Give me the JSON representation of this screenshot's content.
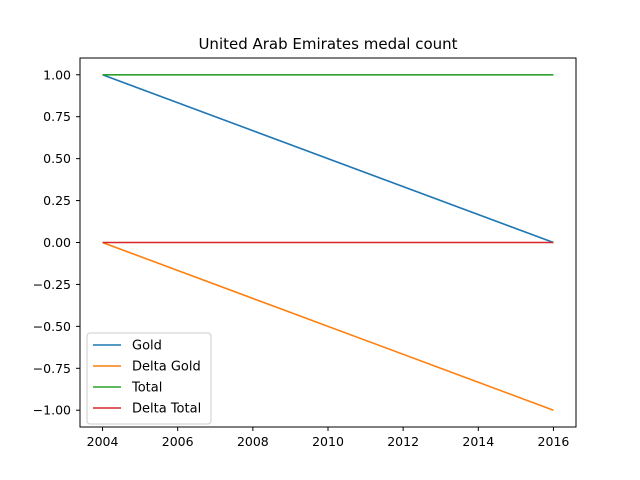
{
  "chart_data": {
    "type": "line",
    "title": "United Arab Emirates medal count",
    "xlabel": "",
    "ylabel": "",
    "x": [
      2004,
      2016
    ],
    "xlim": [
      2003.4,
      2016.6
    ],
    "ylim": [
      -1.1,
      1.1
    ],
    "xticks": [
      2004,
      2006,
      2008,
      2010,
      2012,
      2014,
      2016
    ],
    "yticks": [
      1.0,
      0.75,
      0.5,
      0.25,
      0.0,
      -0.25,
      -0.5,
      -0.75,
      -1.0
    ],
    "xtick_labels": [
      "2004",
      "2006",
      "2008",
      "2010",
      "2012",
      "2014",
      "2016"
    ],
    "ytick_labels": [
      "1.00",
      "0.75",
      "0.50",
      "0.25",
      "0.00",
      "−0.25",
      "−0.50",
      "−0.75",
      "−1.00"
    ],
    "grid": false,
    "legend_position": "lower-left",
    "series": [
      {
        "name": "Gold",
        "values": [
          1,
          0
        ],
        "color": "#1f77b4"
      },
      {
        "name": "Delta Gold",
        "values": [
          0,
          -1
        ],
        "color": "#ff7f0e"
      },
      {
        "name": "Total",
        "values": [
          1,
          1
        ],
        "color": "#2ca02c"
      },
      {
        "name": "Delta Total",
        "values": [
          0,
          0
        ],
        "color": "#d62728"
      }
    ]
  }
}
